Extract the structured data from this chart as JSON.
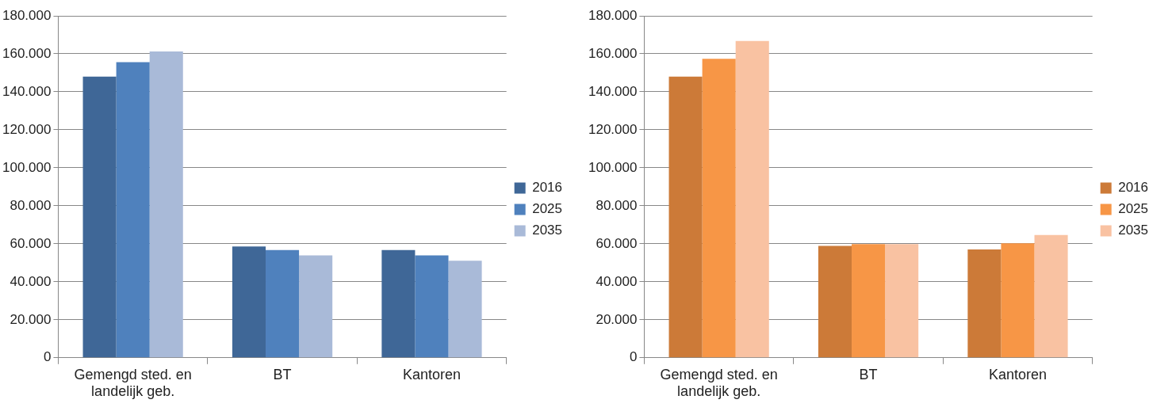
{
  "chart_data": [
    {
      "type": "bar",
      "categories": [
        "Gemengd sted. en landelijk geb.",
        "BT",
        "Kantoren"
      ],
      "series": [
        {
          "name": "2016",
          "color": "#3f6797",
          "values": [
            148000,
            58600,
            56700
          ]
        },
        {
          "name": "2025",
          "color": "#4f81bd",
          "values": [
            155600,
            56700,
            53900
          ]
        },
        {
          "name": "2035",
          "color": "#a9bad8",
          "values": [
            161200,
            53900,
            51100
          ]
        }
      ],
      "ylim": [
        0,
        180000
      ],
      "yticks": [
        0,
        {
          "value": 20000,
          "label": "20.000"
        },
        {
          "value": 40000,
          "label": "40.000"
        },
        {
          "value": 60000,
          "label": "60.000"
        },
        {
          "value": 80000,
          "label": "80.000"
        },
        {
          "value": 100000,
          "label": "100.000"
        },
        {
          "value": 120000,
          "label": "120.000"
        },
        {
          "value": 140000,
          "label": "140.000"
        },
        {
          "value": 160000,
          "label": "160.000"
        },
        {
          "value": 180000,
          "label": "180.000"
        }
      ],
      "grid": "y",
      "legend": "right"
    },
    {
      "type": "bar",
      "categories": [
        "Gemengd sted. en landelijk geb.",
        "BT",
        "Kantoren"
      ],
      "series": [
        {
          "name": "2016",
          "color": "#cc7a38",
          "values": [
            148000,
            58900,
            57000
          ]
        },
        {
          "name": "2025",
          "color": "#f79646",
          "values": [
            157400,
            59800,
            60300
          ]
        },
        {
          "name": "2035",
          "color": "#f9c2a2",
          "values": [
            166800,
            59800,
            64600
          ]
        }
      ],
      "ylim": [
        0,
        180000
      ],
      "yticks": [
        0,
        {
          "value": 20000,
          "label": "20.000"
        },
        {
          "value": 40000,
          "label": "40.000"
        },
        {
          "value": 60000,
          "label": "60.000"
        },
        {
          "value": 80000,
          "label": "80.000"
        },
        {
          "value": 100000,
          "label": "100.000"
        },
        {
          "value": 120000,
          "label": "120.000"
        },
        {
          "value": 140000,
          "label": "140.000"
        },
        {
          "value": 160000,
          "label": "160.000"
        },
        {
          "value": 180000,
          "label": "180.000"
        }
      ],
      "grid": "y",
      "legend": "right"
    }
  ]
}
